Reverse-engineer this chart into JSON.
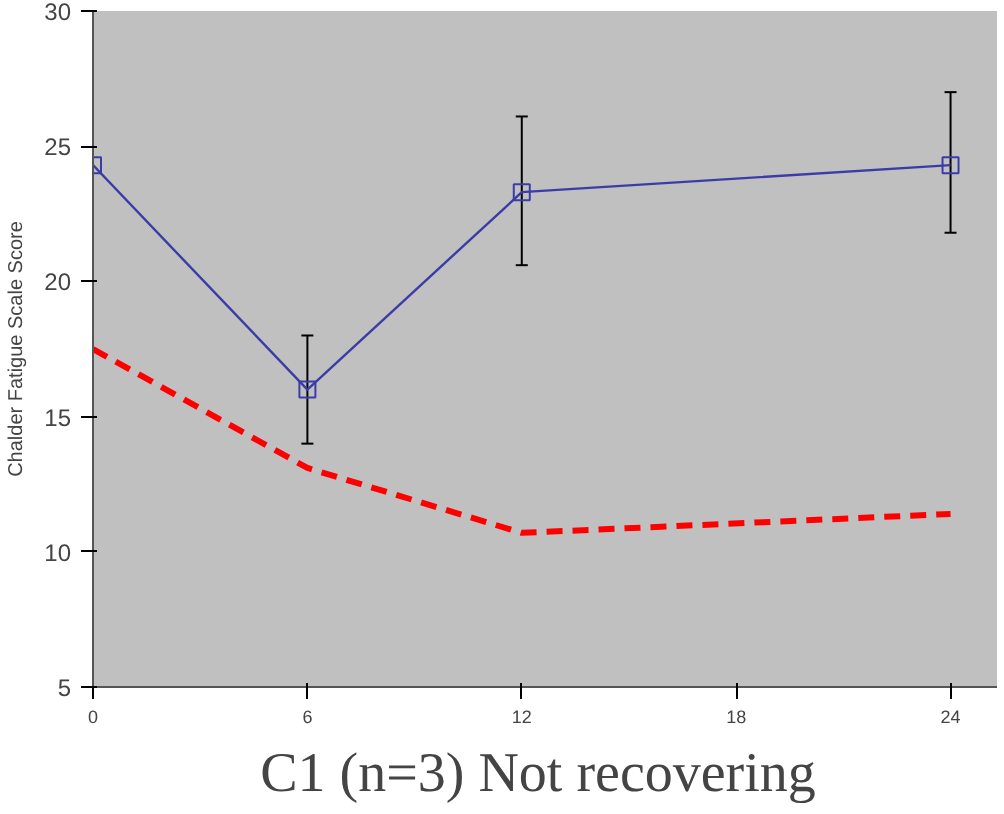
{
  "chart_data": {
    "type": "line",
    "ylabel": "Chalder Fatigue Scale Score",
    "x": [
      0,
      6,
      12,
      24
    ],
    "series": [
      {
        "color": "#3c3ca8",
        "values": [
          24.3,
          16.0,
          23.3,
          24.3
        ],
        "errors": [
          null,
          [
            14.0,
            18.0
          ],
          [
            20.6,
            26.1
          ],
          [
            21.8,
            27.0
          ]
        ],
        "marker": "square",
        "line_style": "solid"
      },
      {
        "color": "#ff0000",
        "values": [
          17.5,
          13.1,
          10.7,
          11.4
        ],
        "marker": "none",
        "line_style": "dashed"
      }
    ],
    "xlim": [
      0,
      25.3
    ],
    "xticks": [
      0,
      6,
      12,
      18,
      24
    ],
    "ylim": [
      5,
      30
    ],
    "yticks": [
      5,
      10,
      15,
      20,
      25,
      30
    ],
    "grid": false,
    "annotations": [
      "C1 (n=3)  Not recovering"
    ]
  }
}
